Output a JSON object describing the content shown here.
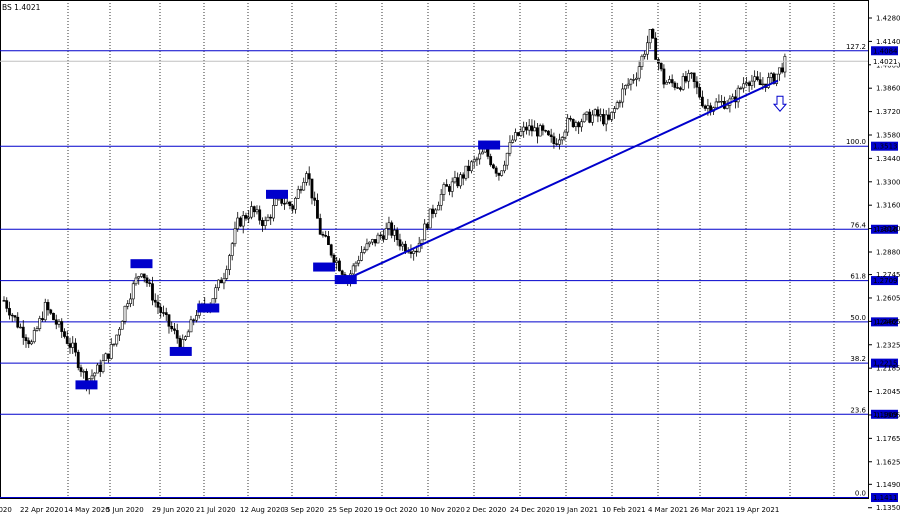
{
  "header": {
    "symbol_label": "BS 1.4021"
  },
  "chart_data": {
    "type": "candlestick",
    "price_axis": {
      "ticks": [
        1.428,
        1.414,
        1.4,
        1.386,
        1.372,
        1.358,
        1.344,
        1.33,
        1.316,
        1.302,
        1.288,
        1.2745,
        1.2605,
        1.2465,
        1.2325,
        1.2185,
        1.2045,
        1.1905,
        1.1765,
        1.1625,
        1.149,
        1.135,
        1.121
      ],
      "tick_labels": [
        "1.4280",
        "1.4140",
        "1.4000",
        "1.3860",
        "1.3720",
        "1.3580",
        "1.3440",
        "1.3300",
        "1.3160",
        "1.3020",
        "1.2880",
        "1.2745",
        "1.2605",
        "1.2465",
        "1.2325",
        "1.2185",
        "1.2045",
        "1.1905",
        "1.1765",
        "1.1625",
        "1.1490",
        "1.1350",
        "1.1210"
      ],
      "range": [
        1.113,
        1.434
      ],
      "current_price": "1.4021"
    },
    "time_axis": {
      "labels": [
        "2020",
        "22 Apr 2020",
        "14 May 2020",
        "5 Jun 2020",
        "29 Jun 2020",
        "21 Jul 2020",
        "12 Aug 2020",
        "3 Sep 2020",
        "25 Sep 2020",
        "19 Oct 2020",
        "10 Nov 2020",
        "2 Dec 2020",
        "24 Dec 2020",
        "19 Jan 2021",
        "10 Feb 2021",
        "4 Mar 2021",
        "26 Mar 2021",
        "19 Apr 2021"
      ]
    },
    "fibonacci_levels": [
      {
        "ratio": "127.2",
        "price": 1.4084,
        "label": "1.4084"
      },
      {
        "ratio": "100.0",
        "price": 1.3513,
        "label": "1.3513"
      },
      {
        "ratio": "76.4",
        "price": 1.3016,
        "label": "1.3016"
      },
      {
        "ratio": "61.8",
        "price": 1.2709,
        "label": "1.2709"
      },
      {
        "ratio": "50.0",
        "price": 1.2462,
        "label": "1.2462"
      },
      {
        "ratio": "38.2",
        "price": 1.2215,
        "label": "1.2215"
      },
      {
        "ratio": "23.6",
        "price": 1.1909,
        "label": "1.1909"
      },
      {
        "ratio": "0.0",
        "price": 1.1411,
        "label": "1.1411"
      }
    ],
    "trendline": {
      "from_date": "22 Sep 2020",
      "from_price": 1.2715,
      "to_date": "30 Apr 2021",
      "to_price": 1.3905
    },
    "signal": {
      "type": "down-arrow",
      "price": 1.374
    },
    "price_path": [
      {
        "date": "2020-04-01",
        "price": 1.259
      },
      {
        "date": "2020-04-08",
        "price": 1.245
      },
      {
        "date": "2020-04-15",
        "price": 1.233
      },
      {
        "date": "2020-04-22",
        "price": 1.255
      },
      {
        "date": "2020-04-29",
        "price": 1.243
      },
      {
        "date": "2020-05-06",
        "price": 1.23
      },
      {
        "date": "2020-05-13",
        "price": 1.211
      },
      {
        "date": "2020-05-20",
        "price": 1.219
      },
      {
        "date": "2020-05-27",
        "price": 1.233
      },
      {
        "date": "2020-06-03",
        "price": 1.26
      },
      {
        "date": "2020-06-10",
        "price": 1.278
      },
      {
        "date": "2020-06-17",
        "price": 1.258
      },
      {
        "date": "2020-06-24",
        "price": 1.244
      },
      {
        "date": "2020-07-01",
        "price": 1.232
      },
      {
        "date": "2020-07-08",
        "price": 1.252
      },
      {
        "date": "2020-07-15",
        "price": 1.258
      },
      {
        "date": "2020-07-22",
        "price": 1.275
      },
      {
        "date": "2020-07-29",
        "price": 1.305
      },
      {
        "date": "2020-08-05",
        "price": 1.313
      },
      {
        "date": "2020-08-12",
        "price": 1.305
      },
      {
        "date": "2020-08-19",
        "price": 1.32
      },
      {
        "date": "2020-08-26",
        "price": 1.315
      },
      {
        "date": "2020-09-02",
        "price": 1.338
      },
      {
        "date": "2020-09-09",
        "price": 1.3
      },
      {
        "date": "2020-09-16",
        "price": 1.285
      },
      {
        "date": "2020-09-23",
        "price": 1.272
      },
      {
        "date": "2020-09-30",
        "price": 1.288
      },
      {
        "date": "2020-10-07",
        "price": 1.295
      },
      {
        "date": "2020-10-14",
        "price": 1.302
      },
      {
        "date": "2020-10-21",
        "price": 1.292
      },
      {
        "date": "2020-10-28",
        "price": 1.29
      },
      {
        "date": "2020-11-04",
        "price": 1.31
      },
      {
        "date": "2020-11-11",
        "price": 1.325
      },
      {
        "date": "2020-11-18",
        "price": 1.33
      },
      {
        "date": "2020-11-25",
        "price": 1.34
      },
      {
        "date": "2020-12-02",
        "price": 1.348
      },
      {
        "date": "2020-12-09",
        "price": 1.335
      },
      {
        "date": "2020-12-16",
        "price": 1.355
      },
      {
        "date": "2020-12-23",
        "price": 1.362
      },
      {
        "date": "2020-12-30",
        "price": 1.36
      },
      {
        "date": "2021-01-06",
        "price": 1.353
      },
      {
        "date": "2021-01-13",
        "price": 1.365
      },
      {
        "date": "2021-01-20",
        "price": 1.367
      },
      {
        "date": "2021-01-27",
        "price": 1.37
      },
      {
        "date": "2021-02-03",
        "price": 1.366
      },
      {
        "date": "2021-02-10",
        "price": 1.384
      },
      {
        "date": "2021-02-17",
        "price": 1.395
      },
      {
        "date": "2021-02-24",
        "price": 1.418
      },
      {
        "date": "2021-03-03",
        "price": 1.39
      },
      {
        "date": "2021-03-10",
        "price": 1.388
      },
      {
        "date": "2021-03-17",
        "price": 1.392
      },
      {
        "date": "2021-03-24",
        "price": 1.375
      },
      {
        "date": "2021-03-31",
        "price": 1.377
      },
      {
        "date": "2021-04-07",
        "price": 1.378
      },
      {
        "date": "2021-04-14",
        "price": 1.392
      },
      {
        "date": "2021-04-21",
        "price": 1.388
      },
      {
        "date": "2021-04-28",
        "price": 1.392
      },
      {
        "date": "2021-05-04",
        "price": 1.4021
      }
    ]
  }
}
